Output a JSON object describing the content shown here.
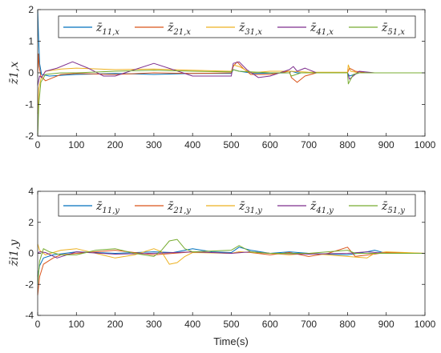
{
  "chart_data": [
    {
      "type": "line",
      "ylabel": "z̄1,x",
      "xlabel": "",
      "xlim": [
        0,
        1000
      ],
      "ylim": [
        -2,
        2
      ],
      "xticks": [
        0,
        100,
        200,
        300,
        400,
        500,
        600,
        700,
        800,
        900,
        1000
      ],
      "yticks": [
        -2,
        -1,
        0,
        1,
        2
      ],
      "grid": false,
      "legend_position": "top",
      "series": [
        {
          "name": "z̄11,x",
          "color": "#0072BD",
          "points": [
            [
              0,
              2
            ],
            [
              2,
              1.2
            ],
            [
              5,
              0.3
            ],
            [
              10,
              -0.05
            ],
            [
              30,
              -0.1
            ],
            [
              100,
              -0.05
            ],
            [
              200,
              -0.02
            ],
            [
              300,
              -0.05
            ],
            [
              400,
              -0.02
            ],
            [
              500,
              -0.02
            ],
            [
              505,
              0.1
            ],
            [
              520,
              0.05
            ],
            [
              560,
              -0.02
            ],
            [
              650,
              0
            ],
            [
              655,
              0.05
            ],
            [
              670,
              0
            ],
            [
              800,
              0
            ],
            [
              805,
              -0.1
            ],
            [
              830,
              0
            ],
            [
              900,
              0
            ],
            [
              1000,
              0
            ]
          ]
        },
        {
          "name": "z̄21,x",
          "color": "#D95319",
          "points": [
            [
              0,
              0
            ],
            [
              2,
              0.6
            ],
            [
              4,
              0.2
            ],
            [
              8,
              -0.1
            ],
            [
              20,
              -0.25
            ],
            [
              40,
              -0.15
            ],
            [
              60,
              -0.05
            ],
            [
              100,
              -0.02
            ],
            [
              200,
              -0.05
            ],
            [
              300,
              0
            ],
            [
              400,
              -0.02
            ],
            [
              500,
              0
            ],
            [
              505,
              0.2
            ],
            [
              515,
              0.35
            ],
            [
              530,
              0.15
            ],
            [
              550,
              -0.05
            ],
            [
              600,
              -0.05
            ],
            [
              650,
              0.05
            ],
            [
              655,
              -0.15
            ],
            [
              670,
              -0.3
            ],
            [
              690,
              -0.1
            ],
            [
              720,
              0
            ],
            [
              800,
              0
            ],
            [
              805,
              0.15
            ],
            [
              820,
              0.05
            ],
            [
              850,
              0
            ],
            [
              1000,
              0
            ]
          ]
        },
        {
          "name": "z̄31,x",
          "color": "#EDB120",
          "points": [
            [
              0,
              -1.3
            ],
            [
              3,
              -0.5
            ],
            [
              8,
              -0.2
            ],
            [
              20,
              0.05
            ],
            [
              60,
              0.12
            ],
            [
              100,
              0.15
            ],
            [
              200,
              0.1
            ],
            [
              300,
              0.12
            ],
            [
              400,
              0.08
            ],
            [
              500,
              0.05
            ],
            [
              505,
              0.25
            ],
            [
              520,
              0.2
            ],
            [
              550,
              0
            ],
            [
              600,
              0.05
            ],
            [
              650,
              0.05
            ],
            [
              700,
              0.02
            ],
            [
              800,
              0.02
            ],
            [
              802,
              0.25
            ],
            [
              808,
              0.05
            ],
            [
              830,
              0
            ],
            [
              900,
              0
            ],
            [
              1000,
              0
            ]
          ]
        },
        {
          "name": "z̄41,x",
          "color": "#7E2F8E",
          "points": [
            [
              0,
              -0.4
            ],
            [
              5,
              -0.1
            ],
            [
              10,
              -0.15
            ],
            [
              20,
              0.05
            ],
            [
              50,
              0.15
            ],
            [
              90,
              0.35
            ],
            [
              130,
              0.15
            ],
            [
              170,
              -0.1
            ],
            [
              200,
              -0.1
            ],
            [
              250,
              0.1
            ],
            [
              300,
              0.3
            ],
            [
              350,
              0.1
            ],
            [
              400,
              -0.1
            ],
            [
              500,
              -0.1
            ],
            [
              505,
              0.3
            ],
            [
              520,
              0.35
            ],
            [
              540,
              0.1
            ],
            [
              570,
              -0.15
            ],
            [
              600,
              -0.1
            ],
            [
              650,
              0.1
            ],
            [
              660,
              0.2
            ],
            [
              670,
              0.05
            ],
            [
              690,
              0.15
            ],
            [
              720,
              0
            ],
            [
              800,
              0
            ],
            [
              805,
              -0.2
            ],
            [
              830,
              0.05
            ],
            [
              870,
              0
            ],
            [
              1000,
              0
            ]
          ]
        },
        {
          "name": "z̄51,x",
          "color": "#77AC30",
          "points": [
            [
              0,
              -2
            ],
            [
              3,
              -1
            ],
            [
              8,
              -0.3
            ],
            [
              20,
              -0.05
            ],
            [
              60,
              0
            ],
            [
              100,
              0
            ],
            [
              200,
              0.05
            ],
            [
              300,
              0.08
            ],
            [
              400,
              0.05
            ],
            [
              500,
              0.03
            ],
            [
              505,
              0.1
            ],
            [
              520,
              0.05
            ],
            [
              600,
              0
            ],
            [
              650,
              0
            ],
            [
              655,
              -0.1
            ],
            [
              680,
              0
            ],
            [
              800,
              0
            ],
            [
              802,
              -0.35
            ],
            [
              815,
              -0.05
            ],
            [
              830,
              0
            ],
            [
              1000,
              0
            ]
          ]
        }
      ]
    },
    {
      "type": "line",
      "ylabel": "z̄i1,y",
      "xlabel": "Time(s)",
      "xlim": [
        0,
        1000
      ],
      "ylim": [
        -4,
        4
      ],
      "xticks": [
        0,
        100,
        200,
        300,
        400,
        500,
        600,
        700,
        800,
        900,
        1000
      ],
      "yticks": [
        -4,
        -2,
        0,
        2,
        4
      ],
      "grid": false,
      "legend_position": "top",
      "series": [
        {
          "name": "z̄11,y",
          "color": "#0072BD",
          "points": [
            [
              0,
              -1.5
            ],
            [
              5,
              -0.8
            ],
            [
              15,
              -0.3
            ],
            [
              40,
              -0.1
            ],
            [
              100,
              0.1
            ],
            [
              150,
              0.05
            ],
            [
              200,
              0
            ],
            [
              300,
              0.1
            ],
            [
              350,
              0.05
            ],
            [
              400,
              0.3
            ],
            [
              450,
              0.1
            ],
            [
              500,
              0.05
            ],
            [
              520,
              0.4
            ],
            [
              550,
              0.2
            ],
            [
              600,
              0
            ],
            [
              650,
              0.1
            ],
            [
              700,
              0
            ],
            [
              800,
              -0.1
            ],
            [
              850,
              0.1
            ],
            [
              870,
              0.2
            ],
            [
              900,
              0
            ],
            [
              1000,
              0
            ]
          ]
        },
        {
          "name": "z̄21,y",
          "color": "#D95319",
          "points": [
            [
              0,
              -2.7
            ],
            [
              5,
              -1.5
            ],
            [
              15,
              -0.7
            ],
            [
              40,
              -0.3
            ],
            [
              60,
              -0.1
            ],
            [
              100,
              0
            ],
            [
              200,
              0.2
            ],
            [
              300,
              -0.1
            ],
            [
              400,
              0.1
            ],
            [
              500,
              0
            ],
            [
              520,
              0.1
            ],
            [
              550,
              0.05
            ],
            [
              600,
              -0.1
            ],
            [
              650,
              0.05
            ],
            [
              700,
              -0.2
            ],
            [
              750,
              0
            ],
            [
              800,
              0.4
            ],
            [
              820,
              -0.2
            ],
            [
              900,
              0.05
            ],
            [
              1000,
              0
            ]
          ]
        },
        {
          "name": "z̄31,y",
          "color": "#EDB120",
          "points": [
            [
              0,
              0.6
            ],
            [
              5,
              0.2
            ],
            [
              20,
              -0.1
            ],
            [
              60,
              0.2
            ],
            [
              100,
              0.3
            ],
            [
              150,
              0
            ],
            [
              200,
              -0.3
            ],
            [
              250,
              -0.1
            ],
            [
              300,
              0.3
            ],
            [
              320,
              0.1
            ],
            [
              340,
              -0.7
            ],
            [
              360,
              -0.6
            ],
            [
              380,
              -0.2
            ],
            [
              400,
              0.05
            ],
            [
              500,
              0
            ],
            [
              520,
              0.1
            ],
            [
              600,
              0
            ],
            [
              650,
              -0.1
            ],
            [
              700,
              0
            ],
            [
              800,
              -0.2
            ],
            [
              850,
              -0.3
            ],
            [
              870,
              0
            ],
            [
              900,
              0.1
            ],
            [
              1000,
              0
            ]
          ]
        },
        {
          "name": "z̄41,y",
          "color": "#7E2F8E",
          "points": [
            [
              0,
              0
            ],
            [
              5,
              0.1
            ],
            [
              20,
              0.05
            ],
            [
              50,
              -0.3
            ],
            [
              100,
              0.1
            ],
            [
              200,
              -0.05
            ],
            [
              300,
              0
            ],
            [
              400,
              0.1
            ],
            [
              500,
              0
            ],
            [
              550,
              0.1
            ],
            [
              600,
              0
            ],
            [
              700,
              -0.05
            ],
            [
              800,
              0
            ],
            [
              850,
              0.1
            ],
            [
              900,
              0
            ],
            [
              1000,
              0
            ]
          ]
        },
        {
          "name": "z̄51,y",
          "color": "#77AC30",
          "points": [
            [
              0,
              -2
            ],
            [
              5,
              -0.5
            ],
            [
              15,
              0.3
            ],
            [
              30,
              0.1
            ],
            [
              60,
              -0.1
            ],
            [
              100,
              -0.1
            ],
            [
              150,
              0.2
            ],
            [
              200,
              0.3
            ],
            [
              250,
              0
            ],
            [
              300,
              -0.2
            ],
            [
              320,
              0.2
            ],
            [
              340,
              0.8
            ],
            [
              360,
              0.9
            ],
            [
              380,
              0.3
            ],
            [
              400,
              0.1
            ],
            [
              500,
              0.2
            ],
            [
              520,
              0.5
            ],
            [
              550,
              0.1
            ],
            [
              600,
              0
            ],
            [
              700,
              0
            ],
            [
              800,
              0.2
            ],
            [
              820,
              0
            ],
            [
              900,
              0
            ],
            [
              1000,
              0
            ]
          ]
        }
      ]
    }
  ]
}
